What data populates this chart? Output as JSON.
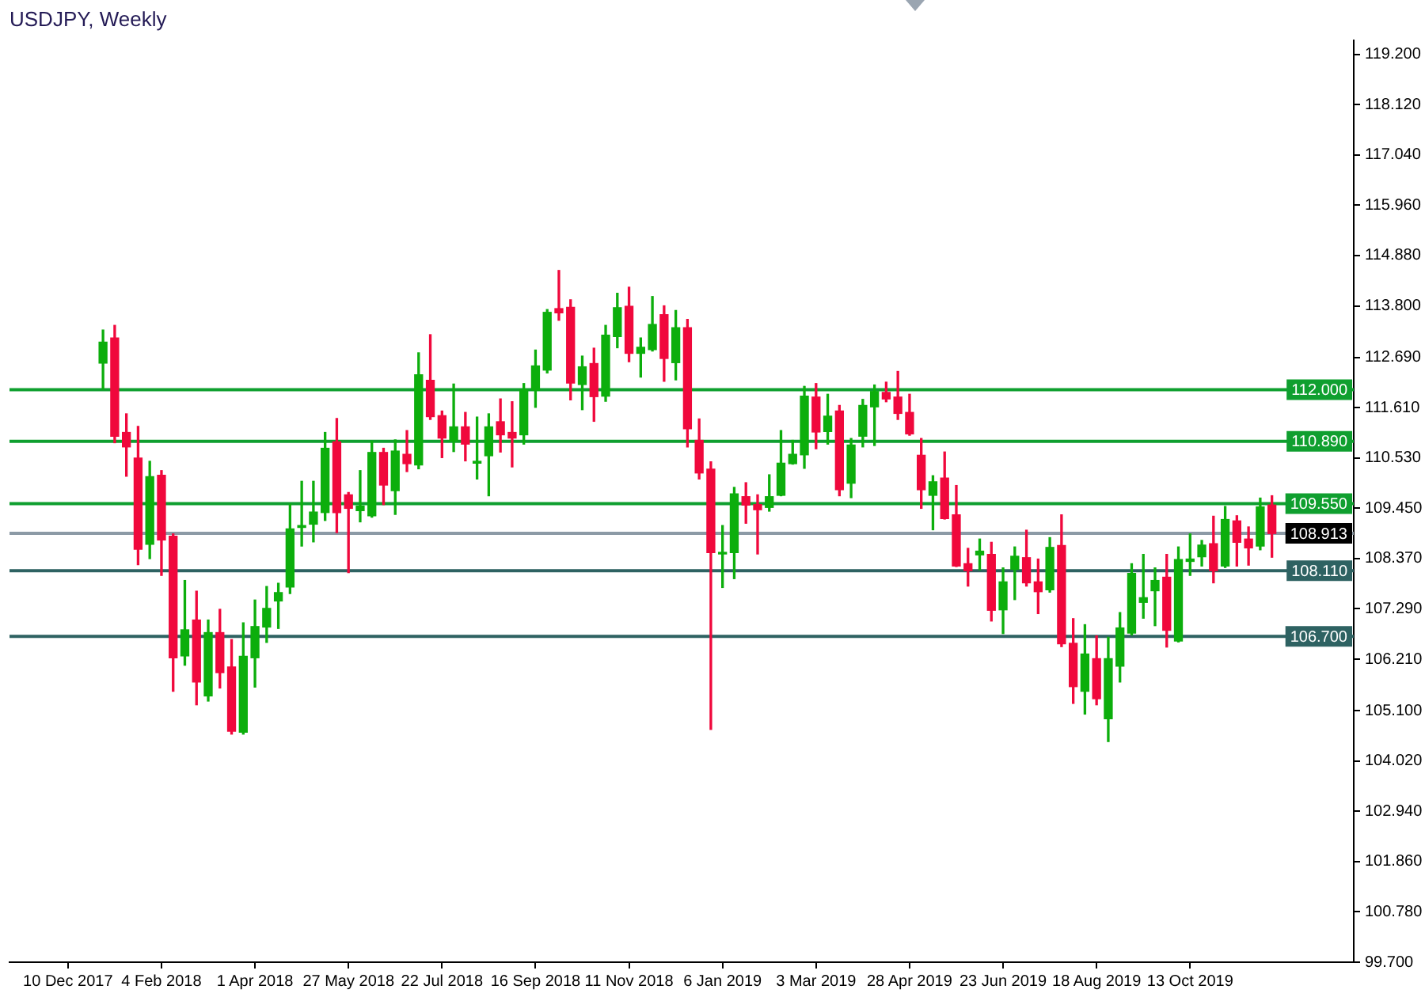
{
  "chart_data": {
    "type": "candlestick",
    "title": "USDJPY, Weekly",
    "x": [
      "2017-12-31",
      "2018-01-07",
      "2018-01-14",
      "2018-01-21",
      "2018-01-28",
      "2018-02-04",
      "2018-02-11",
      "2018-02-18",
      "2018-02-25",
      "2018-03-04",
      "2018-03-11",
      "2018-03-18",
      "2018-03-25",
      "2018-04-01",
      "2018-04-08",
      "2018-04-15",
      "2018-04-22",
      "2018-04-29",
      "2018-05-06",
      "2018-05-13",
      "2018-05-20",
      "2018-05-27",
      "2018-06-03",
      "2018-06-10",
      "2018-06-17",
      "2018-06-24",
      "2018-07-01",
      "2018-07-08",
      "2018-07-15",
      "2018-07-22",
      "2018-07-29",
      "2018-08-05",
      "2018-08-12",
      "2018-08-19",
      "2018-08-26",
      "2018-09-02",
      "2018-09-09",
      "2018-09-16",
      "2018-09-23",
      "2018-09-30",
      "2018-10-07",
      "2018-10-14",
      "2018-10-21",
      "2018-10-28",
      "2018-11-04",
      "2018-11-11",
      "2018-11-18",
      "2018-11-25",
      "2018-12-02",
      "2018-12-09",
      "2018-12-16",
      "2018-12-23",
      "2018-12-30",
      "2019-01-06",
      "2019-01-13",
      "2019-01-20",
      "2019-01-27",
      "2019-02-03",
      "2019-02-10",
      "2019-02-17",
      "2019-02-24",
      "2019-03-03",
      "2019-03-10",
      "2019-03-17",
      "2019-03-24",
      "2019-03-31",
      "2019-04-07",
      "2019-04-14",
      "2019-04-21",
      "2019-04-28",
      "2019-05-05",
      "2019-05-12",
      "2019-05-19",
      "2019-05-26",
      "2019-06-02",
      "2019-06-09",
      "2019-06-16",
      "2019-06-23",
      "2019-06-30",
      "2019-07-07",
      "2019-07-14",
      "2019-07-21",
      "2019-07-28",
      "2019-08-04",
      "2019-08-11",
      "2019-08-18",
      "2019-08-25",
      "2019-09-01",
      "2019-09-08",
      "2019-09-15",
      "2019-09-22",
      "2019-09-29",
      "2019-10-06",
      "2019-10-13",
      "2019-10-20",
      "2019-10-27",
      "2019-11-03",
      "2019-11-10",
      "2019-11-17",
      "2019-11-24",
      "2019-12-01"
    ],
    "ohlc": [
      [
        112.57,
        113.28,
        112.01,
        113.02
      ],
      [
        113.11,
        113.38,
        110.86,
        111.0
      ],
      [
        111.08,
        111.48,
        110.14,
        110.77
      ],
      [
        110.53,
        111.21,
        108.24,
        108.57
      ],
      [
        108.68,
        110.46,
        108.37,
        110.13
      ],
      [
        110.16,
        110.26,
        108.01,
        108.77
      ],
      [
        108.85,
        108.9,
        105.52,
        106.24
      ],
      [
        106.28,
        107.9,
        106.08,
        106.84
      ],
      [
        107.05,
        107.67,
        105.23,
        105.72
      ],
      [
        105.42,
        107.05,
        105.31,
        106.78
      ],
      [
        106.78,
        107.28,
        105.59,
        105.92
      ],
      [
        106.04,
        106.63,
        104.6,
        104.66
      ],
      [
        104.64,
        106.99,
        104.6,
        106.27
      ],
      [
        106.24,
        107.48,
        105.61,
        106.91
      ],
      [
        106.9,
        107.77,
        106.57,
        107.3
      ],
      [
        107.46,
        107.84,
        106.87,
        107.64
      ],
      [
        107.76,
        109.54,
        107.62,
        109.01
      ],
      [
        109.04,
        110.03,
        108.64,
        109.08
      ],
      [
        109.11,
        110.03,
        108.73,
        109.37
      ],
      [
        109.36,
        111.08,
        109.19,
        110.74
      ],
      [
        110.88,
        111.38,
        108.93,
        109.36
      ],
      [
        109.74,
        109.79,
        108.07,
        109.45
      ],
      [
        109.4,
        110.26,
        109.16,
        109.5
      ],
      [
        109.29,
        110.89,
        109.26,
        110.65
      ],
      [
        110.65,
        110.74,
        109.53,
        109.95
      ],
      [
        109.83,
        110.92,
        109.32,
        110.68
      ],
      [
        110.61,
        111.12,
        110.24,
        110.41
      ],
      [
        110.38,
        112.79,
        110.3,
        112.32
      ],
      [
        112.2,
        113.18,
        111.36,
        111.42
      ],
      [
        111.44,
        111.54,
        110.54,
        110.96
      ],
      [
        110.9,
        112.12,
        110.67,
        111.2
      ],
      [
        111.2,
        111.51,
        110.47,
        110.83
      ],
      [
        110.42,
        111.41,
        110.08,
        110.46
      ],
      [
        110.58,
        111.48,
        109.72,
        111.2
      ],
      [
        111.31,
        111.8,
        110.66,
        111.03
      ],
      [
        111.08,
        111.74,
        110.34,
        110.96
      ],
      [
        111.03,
        112.13,
        110.83,
        112.0
      ],
      [
        111.99,
        112.85,
        111.62,
        112.51
      ],
      [
        112.42,
        113.72,
        112.36,
        113.66
      ],
      [
        113.74,
        114.56,
        113.49,
        113.65
      ],
      [
        113.77,
        113.93,
        111.78,
        112.14
      ],
      [
        112.11,
        112.72,
        111.57,
        112.49
      ],
      [
        112.56,
        112.89,
        111.32,
        111.85
      ],
      [
        111.86,
        113.38,
        111.75,
        113.17
      ],
      [
        113.14,
        114.07,
        112.9,
        113.76
      ],
      [
        113.79,
        114.2,
        112.6,
        112.78
      ],
      [
        112.78,
        113.11,
        112.27,
        112.91
      ],
      [
        112.86,
        114.0,
        112.83,
        113.4
      ],
      [
        113.61,
        113.8,
        112.18,
        112.67
      ],
      [
        112.58,
        113.7,
        112.21,
        113.33
      ],
      [
        113.33,
        113.51,
        110.77,
        111.16
      ],
      [
        110.91,
        111.37,
        110.08,
        110.21
      ],
      [
        110.29,
        110.45,
        104.7,
        108.5
      ],
      [
        108.47,
        109.08,
        107.75,
        108.5
      ],
      [
        108.5,
        109.9,
        107.94,
        109.76
      ],
      [
        109.7,
        110.0,
        109.13,
        109.52
      ],
      [
        109.53,
        109.74,
        108.47,
        109.42
      ],
      [
        109.47,
        110.17,
        109.39,
        109.7
      ],
      [
        109.73,
        111.12,
        109.72,
        110.42
      ],
      [
        110.41,
        110.91,
        110.4,
        110.61
      ],
      [
        110.6,
        112.07,
        110.31,
        111.86
      ],
      [
        111.84,
        112.13,
        110.73,
        111.09
      ],
      [
        111.1,
        111.9,
        110.83,
        111.43
      ],
      [
        111.54,
        111.66,
        109.72,
        109.85
      ],
      [
        109.99,
        110.95,
        109.68,
        110.81
      ],
      [
        111.0,
        111.79,
        110.77,
        111.66
      ],
      [
        111.63,
        112.1,
        110.8,
        111.96
      ],
      [
        111.94,
        112.16,
        111.74,
        111.8
      ],
      [
        111.84,
        112.39,
        111.36,
        111.49
      ],
      [
        111.51,
        111.9,
        111.02,
        111.05
      ],
      [
        110.59,
        110.95,
        109.45,
        109.85
      ],
      [
        109.73,
        110.15,
        108.99,
        110.02
      ],
      [
        110.1,
        110.66,
        109.22,
        109.23
      ],
      [
        109.31,
        109.94,
        108.2,
        108.21
      ],
      [
        108.26,
        108.59,
        107.78,
        108.11
      ],
      [
        108.45,
        108.79,
        108.13,
        108.53
      ],
      [
        108.46,
        108.72,
        107.03,
        107.26
      ],
      [
        107.27,
        108.17,
        106.76,
        107.87
      ],
      [
        108.14,
        108.62,
        107.49,
        108.42
      ],
      [
        108.39,
        108.98,
        107.78,
        107.85
      ],
      [
        107.87,
        108.36,
        107.19,
        107.66
      ],
      [
        107.7,
        108.82,
        107.65,
        108.61
      ],
      [
        108.65,
        109.31,
        106.48,
        106.54
      ],
      [
        106.55,
        107.08,
        105.26,
        105.62
      ],
      [
        105.52,
        106.95,
        105.03,
        106.32
      ],
      [
        106.22,
        106.71,
        105.23,
        105.36
      ],
      [
        104.93,
        106.68,
        104.44,
        106.22
      ],
      [
        106.06,
        107.21,
        105.72,
        106.88
      ],
      [
        106.77,
        108.26,
        106.73,
        108.05
      ],
      [
        107.43,
        108.46,
        107.09,
        107.53
      ],
      [
        107.68,
        108.17,
        106.93,
        107.9
      ],
      [
        107.97,
        108.46,
        106.47,
        106.83
      ],
      [
        106.6,
        108.62,
        106.58,
        108.35
      ],
      [
        108.31,
        108.9,
        108.01,
        108.36
      ],
      [
        108.41,
        108.76,
        108.21,
        108.66
      ],
      [
        108.69,
        109.28,
        107.85,
        108.11
      ],
      [
        108.21,
        109.49,
        108.18,
        109.21
      ],
      [
        109.18,
        109.29,
        108.21,
        108.72
      ],
      [
        108.79,
        109.05,
        108.23,
        108.6
      ],
      [
        108.64,
        109.67,
        108.56,
        109.48
      ],
      [
        109.52,
        109.72,
        108.4,
        108.91
      ]
    ],
    "colors": [
      "#0cae0c",
      "#f0083c",
      "#f0083c",
      "#f0083c",
      "#0cae0c",
      "#f0083c",
      "#f0083c",
      "#0cae0c",
      "#f0083c",
      "#0cae0c",
      "#f0083c",
      "#f0083c",
      "#0cae0c",
      "#0cae0c",
      "#0cae0c",
      "#0cae0c",
      "#0cae0c",
      "#0cae0c",
      "#0cae0c",
      "#0cae0c",
      "#f0083c",
      "#f0083c",
      "#0cae0c",
      "#0cae0c",
      "#f0083c",
      "#0cae0c",
      "#f0083c",
      "#0cae0c",
      "#f0083c",
      "#f0083c",
      "#0cae0c",
      "#f0083c",
      "#0cae0c",
      "#0cae0c",
      "#f0083c",
      "#f0083c",
      "#0cae0c",
      "#0cae0c",
      "#0cae0c",
      "#f0083c",
      "#f0083c",
      "#0cae0c",
      "#f0083c",
      "#0cae0c",
      "#0cae0c",
      "#f0083c",
      "#0cae0c",
      "#0cae0c",
      "#f0083c",
      "#0cae0c",
      "#f0083c",
      "#f0083c",
      "#f0083c",
      "#0cae0c",
      "#0cae0c",
      "#f0083c",
      "#f0083c",
      "#0cae0c",
      "#0cae0c",
      "#0cae0c",
      "#0cae0c",
      "#f0083c",
      "#0cae0c",
      "#f0083c",
      "#0cae0c",
      "#0cae0c",
      "#0cae0c",
      "#f0083c",
      "#f0083c",
      "#f0083c",
      "#f0083c",
      "#0cae0c",
      "#f0083c",
      "#f0083c",
      "#f0083c",
      "#0cae0c",
      "#f0083c",
      "#0cae0c",
      "#0cae0c",
      "#f0083c",
      "#f0083c",
      "#0cae0c",
      "#f0083c",
      "#f0083c",
      "#0cae0c",
      "#f0083c",
      "#0cae0c",
      "#0cae0c",
      "#0cae0c",
      "#0cae0c",
      "#0cae0c",
      "#f0083c",
      "#0cae0c",
      "#0cae0c",
      "#0cae0c",
      "#f0083c",
      "#0cae0c",
      "#f0083c",
      "#f0083c",
      "#0cae0c",
      "#f0083c"
    ],
    "xlim": [
      "2017-11-05",
      "2020-01-19"
    ],
    "xticks": [
      {
        "value": "2017-12-10",
        "label": "10 Dec 2017"
      },
      {
        "value": "2018-02-04",
        "label": "4 Feb 2018"
      },
      {
        "value": "2018-04-01",
        "label": "1 Apr 2018"
      },
      {
        "value": "2018-05-27",
        "label": "27 May 2018"
      },
      {
        "value": "2018-07-22",
        "label": "22 Jul 2018"
      },
      {
        "value": "2018-09-16",
        "label": "16 Sep 2018"
      },
      {
        "value": "2018-11-11",
        "label": "11 Nov 2018"
      },
      {
        "value": "2019-01-06",
        "label": "6 Jan 2019"
      },
      {
        "value": "2019-03-03",
        "label": "3 Mar 2019"
      },
      {
        "value": "2019-04-28",
        "label": "28 Apr 2019"
      },
      {
        "value": "2019-06-23",
        "label": "23 Jun 2019"
      },
      {
        "value": "2019-08-18",
        "label": "18 Aug 2019"
      },
      {
        "value": "2019-10-13",
        "label": "13 Oct 2019"
      }
    ],
    "ylim": [
      99.7,
      119.5
    ],
    "yticks": [
      {
        "value": 119.2,
        "label": "119.200"
      },
      {
        "value": 118.12,
        "label": "118.120"
      },
      {
        "value": 117.04,
        "label": "117.040"
      },
      {
        "value": 115.96,
        "label": "115.960"
      },
      {
        "value": 114.88,
        "label": "114.880"
      },
      {
        "value": 113.8,
        "label": "113.800"
      },
      {
        "value": 112.69,
        "label": "112.690"
      },
      {
        "value": 111.61,
        "label": "111.610"
      },
      {
        "value": 110.53,
        "label": "110.530"
      },
      {
        "value": 109.45,
        "label": "109.450"
      },
      {
        "value": 108.37,
        "label": "108.370"
      },
      {
        "value": 107.29,
        "label": "107.290"
      },
      {
        "value": 106.21,
        "label": "106.210"
      },
      {
        "value": 105.1,
        "label": "105.100"
      },
      {
        "value": 104.02,
        "label": "104.020"
      },
      {
        "value": 102.94,
        "label": "102.940"
      },
      {
        "value": 101.86,
        "label": "101.860"
      },
      {
        "value": 100.78,
        "label": "100.780"
      },
      {
        "value": 99.7,
        "label": "99.700"
      }
    ],
    "ref_lines": [
      {
        "axis": "y",
        "value": 112.0,
        "label": "112.000",
        "color": "#0f9f2f"
      },
      {
        "axis": "y",
        "value": 110.89,
        "label": "110.890",
        "color": "#0f9f2f"
      },
      {
        "axis": "y",
        "value": 109.55,
        "label": "109.550",
        "color": "#0f9f2f"
      },
      {
        "axis": "y",
        "value": 108.913,
        "label": "108.913",
        "color": "#8c9aa6"
      },
      {
        "axis": "y",
        "value": 108.11,
        "label": "108.110",
        "color": "#2e6262"
      },
      {
        "axis": "y",
        "value": 106.7,
        "label": "106.700",
        "color": "#2e6262"
      }
    ]
  }
}
